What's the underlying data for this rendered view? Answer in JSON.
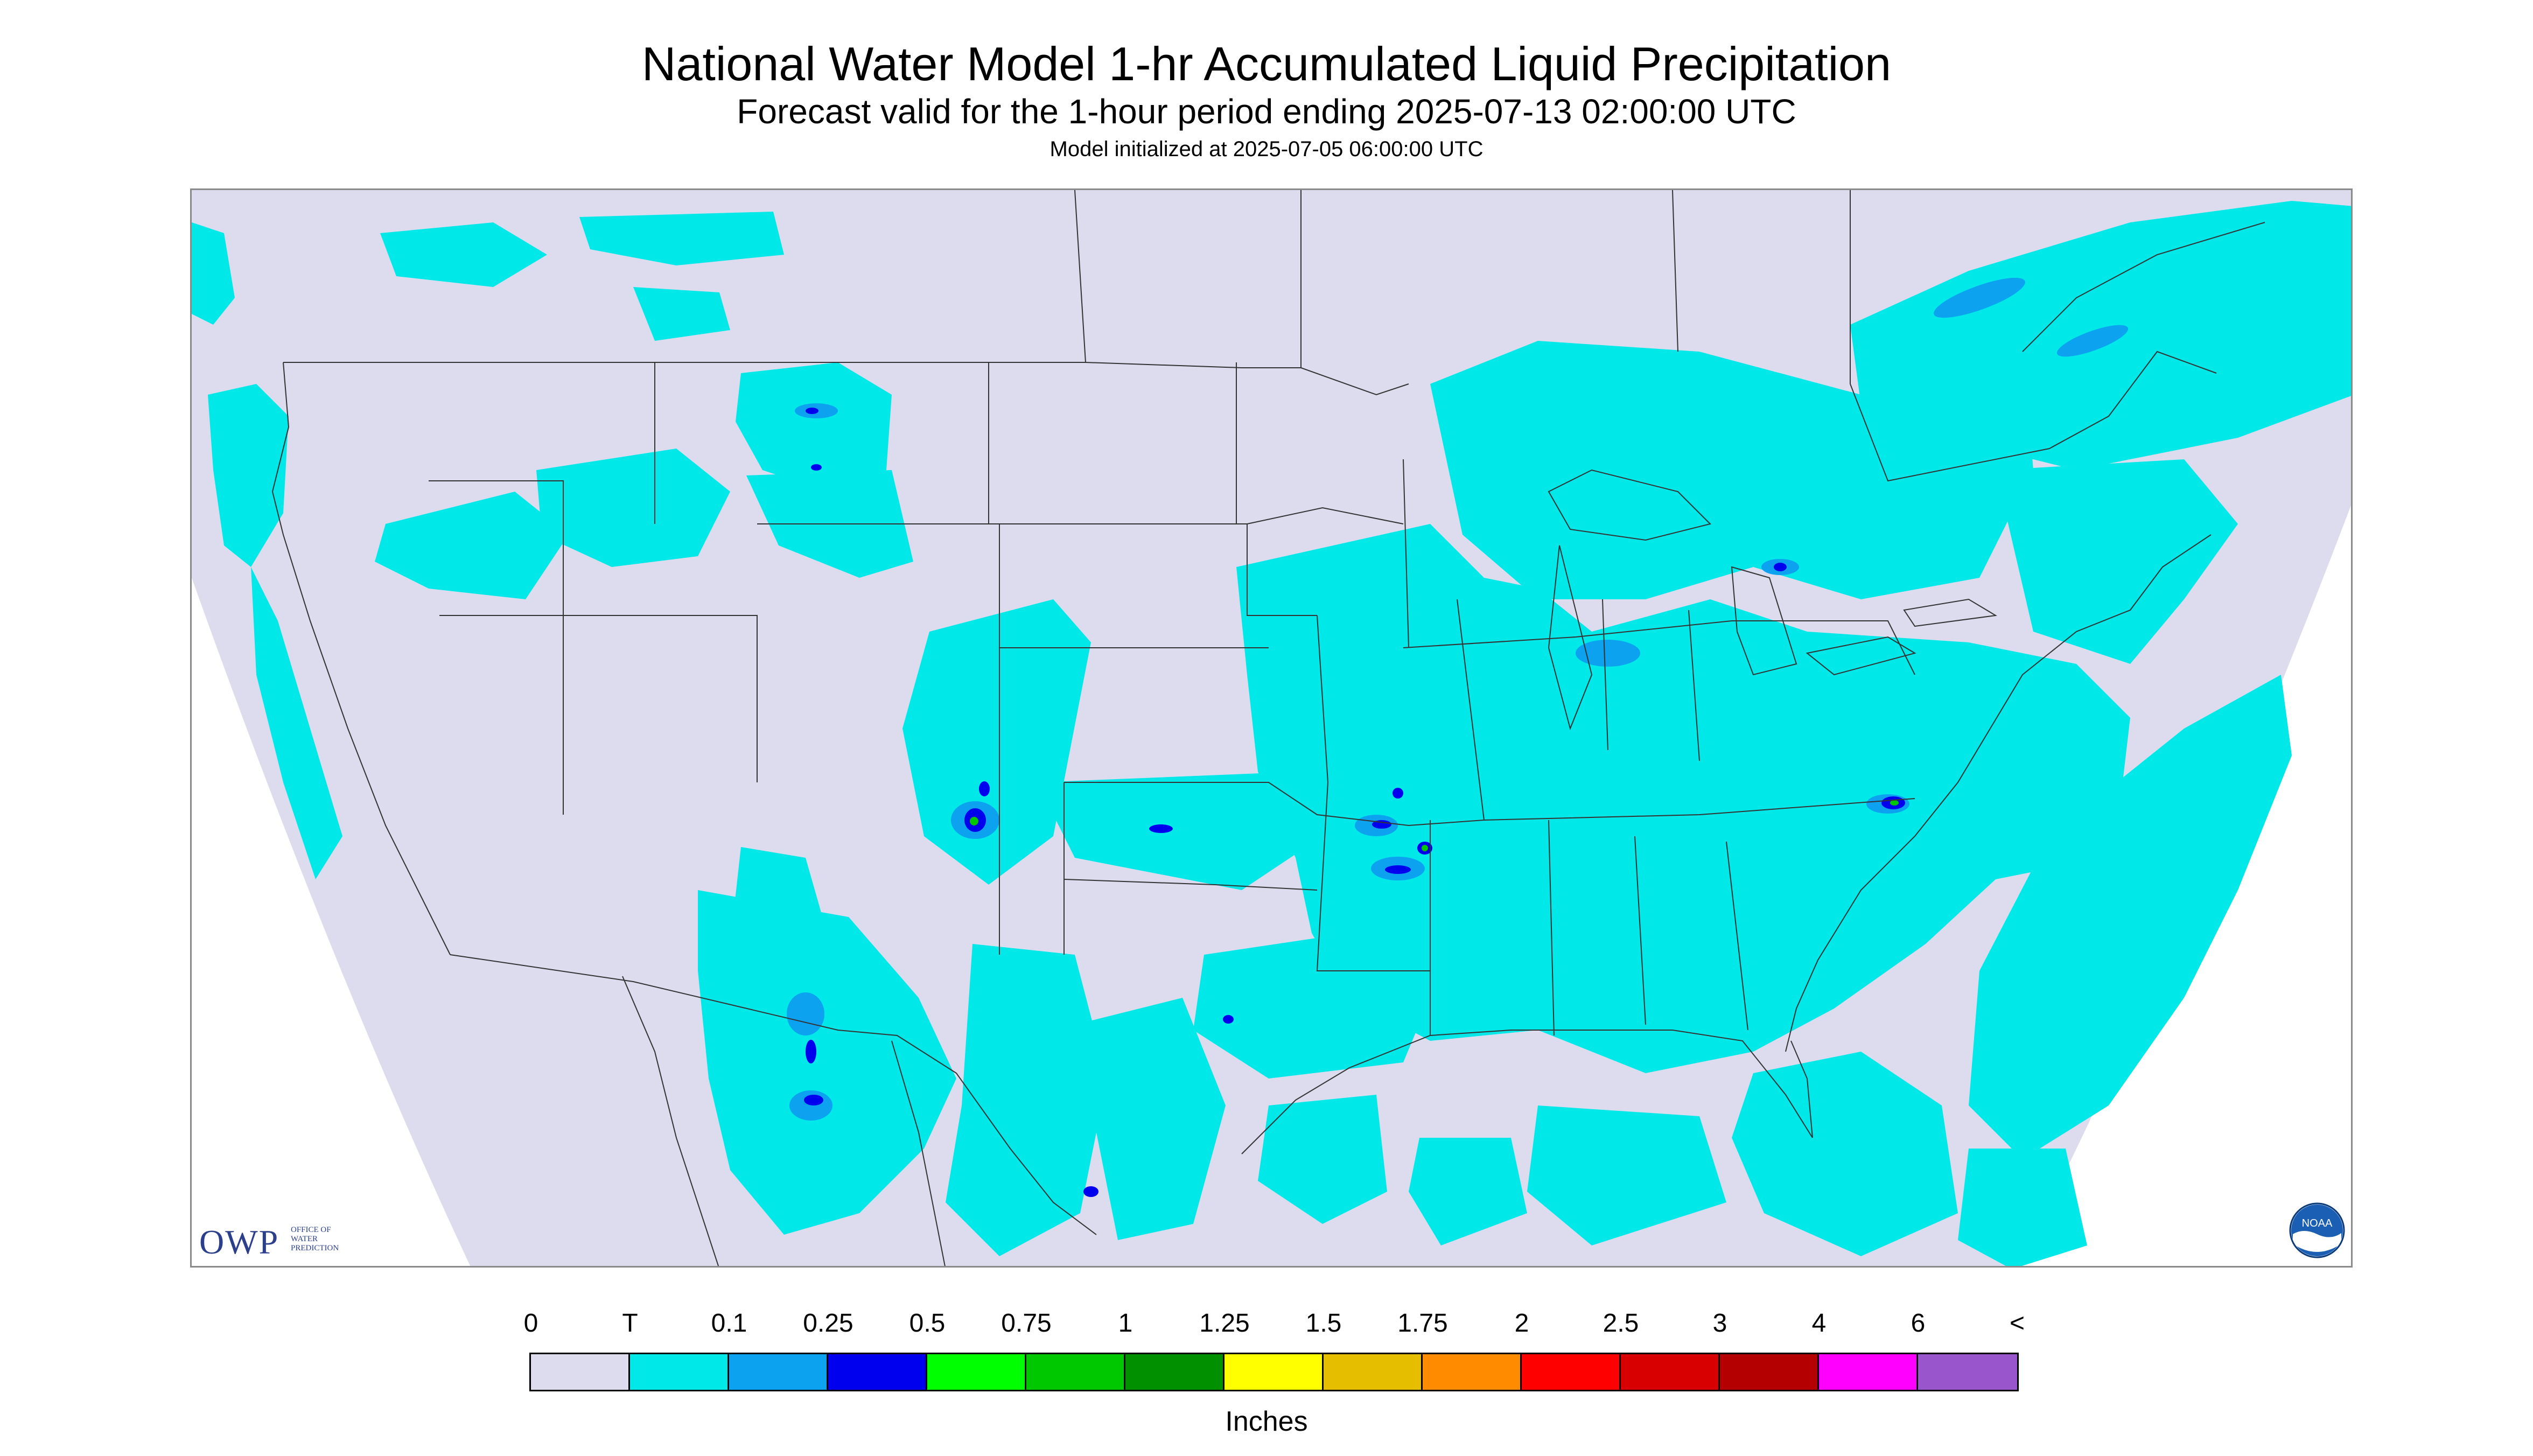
{
  "title": "National Water Model 1-hr Accumulated Liquid Precipitation",
  "subtitle": "Forecast valid for the 1-hour period ending 2025-07-13 02:00:00 UTC",
  "init_line": "Model initialized at 2025-07-05 06:00:00 UTC",
  "logos": {
    "owp_mark": "OWP",
    "owp_text": [
      "OFFICE OF",
      "WATER",
      "PREDICTION"
    ],
    "noaa_text": "NOAA"
  },
  "legend": {
    "labels": [
      "0",
      "T",
      "0.1",
      "0.25",
      "0.5",
      "0.75",
      "1",
      "1.25",
      "1.5",
      "1.75",
      "2",
      "2.5",
      "3",
      "4",
      "6",
      "<"
    ],
    "colors": [
      "#dcdcee",
      "#00e8e8",
      "#0ca2f0",
      "#0000ee",
      "#00ff00",
      "#00c800",
      "#009000",
      "#ffff00",
      "#e6be00",
      "#ff8c00",
      "#ff0000",
      "#d80000",
      "#b40000",
      "#ff00ff",
      "#9955cc"
    ],
    "units": "Inches"
  },
  "colors": {
    "no_precip": "#dcdcee",
    "trace": "#00e8e8",
    "light": "#0ca2f0",
    "moderate": "#0000ee",
    "heavy": "#00c800",
    "border_lines": "#333333"
  }
}
